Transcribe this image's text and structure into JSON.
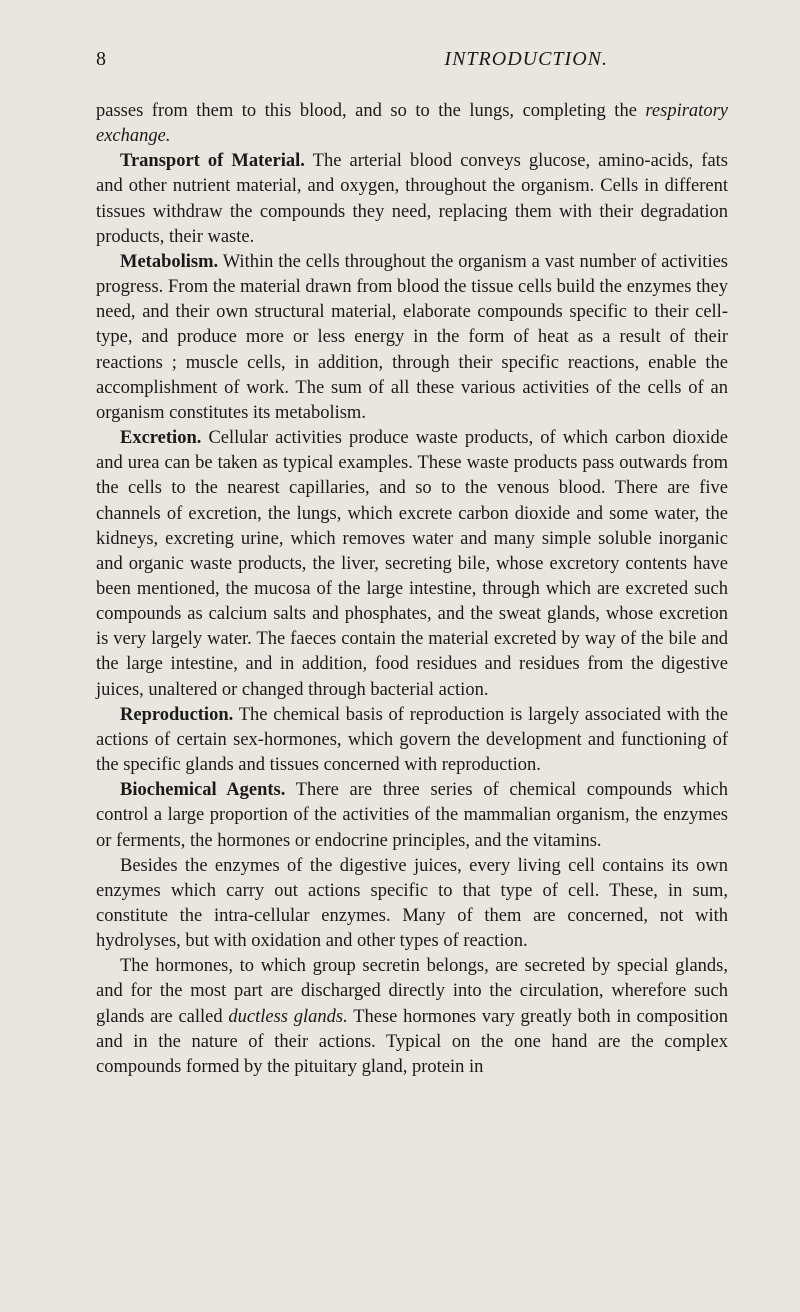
{
  "pageNumber": "8",
  "runningTitle": "INTRODUCTION.",
  "para1": "passes from them to this blood, and so to the lungs, completing the ",
  "para1_ital": "respiratory exchange.",
  "transport_head": "Transport of Material.",
  "transport_body": " The arterial blood conveys glucose, amino-acids, fats and other nutrient material, and oxygen, throughout the organism. Cells in different tissues withdraw the compounds they need, replacing them with their degradation products, their waste.",
  "metabolism_head": "Metabolism.",
  "metabolism_body": " Within the cells throughout the organism a vast number of activities progress. From the material drawn from blood the tissue cells build the enzymes they need, and their own structural material, elaborate compounds specific to their cell-type, and produce more or less energy in the form of heat as a result of their reactions ; muscle cells, in addition, through their specific reactions, enable the accomplishment of work. The sum of all these various activities of the cells of an organism constitutes its metabolism.",
  "excretion_head": "Excretion.",
  "excretion_body": " Cellular activities produce waste products, of which carbon dioxide and urea can be taken as typical examples. These waste products pass outwards from the cells to the nearest capillaries, and so to the venous blood. There are five channels of excretion, the lungs, which excrete carbon dioxide and some water, the kidneys, excreting urine, which removes water and many simple soluble inorganic and organic waste products, the liver, secreting bile, whose excretory contents have been mentioned, the mucosa of the large intestine, through which are excreted such compounds as calcium salts and phosphates, and the sweat glands, whose excretion is very largely water. The faeces contain the material excreted by way of the bile and the large intestine, and in addition, food residues and residues from the digestive juices, unaltered or changed through bacterial action.",
  "reproduction_head": "Reproduction.",
  "reproduction_body": " The chemical basis of reproduction is largely associated with the actions of certain sex-hormones, which govern the development and functioning of the specific glands and tissues concerned with reproduction.",
  "biochem_head": "Biochemical Agents.",
  "biochem_body": " There are three series of chemical compounds which control a large proportion of the activities of the mammalian organism, the enzymes or ferments, the hormones or endocrine principles, and the vitamins.",
  "enzymes_body": "Besides the enzymes of the digestive juices, every living cell contains its own enzymes which carry out actions specific to that type of cell. These, in sum, constitute the intra-cellular enzymes. Many of them are concerned, not with hydrolyses, but with oxidation and other types of reaction.",
  "hormones_pre": "The hormones, to which group secretin belongs, are secreted by special glands, and for the most part are discharged directly into the circulation, wherefore such glands are called ",
  "hormones_ital": "ductless glands.",
  "hormones_post": " These hormones vary greatly both in composition and in the nature of their actions. Typical on the one hand are the complex compounds formed by the pituitary gland, protein in"
}
